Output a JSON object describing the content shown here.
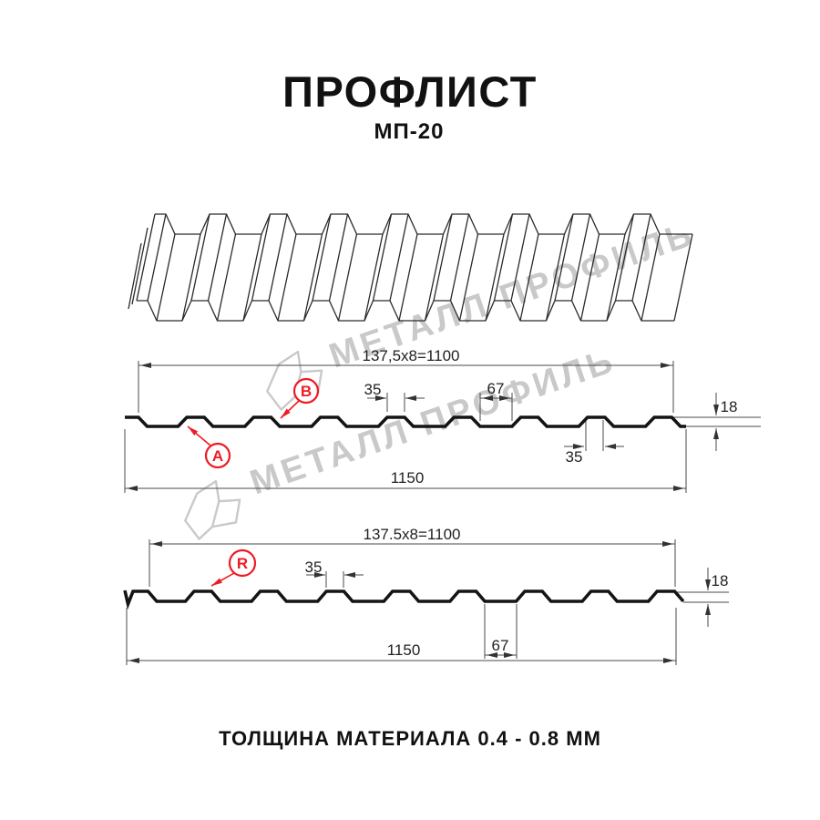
{
  "title": "ПРОФЛИСТ",
  "subtitle": "МП-20",
  "note": "ТОЛЩИНА МАТЕРИАЛА 0.4 - 0.8 ММ",
  "watermark": {
    "text": "МЕТАЛЛ ПРОФИЛЬ"
  },
  "colors": {
    "accent_red": "#ee1c25",
    "line": "#4a4a4a",
    "profile": "#141414",
    "watermark": "#c9c9c9"
  },
  "d1": {
    "working": "137,5x8=1100",
    "total": "1150",
    "top_flat": "35",
    "top_flat_2": "35",
    "valley": "67",
    "height": "18",
    "label_a": "A",
    "label_b": "B"
  },
  "d2": {
    "working": "137.5x8=1100",
    "total": "1150",
    "top_flat": "35",
    "valley": "67",
    "height": "18",
    "label_r": "R"
  }
}
